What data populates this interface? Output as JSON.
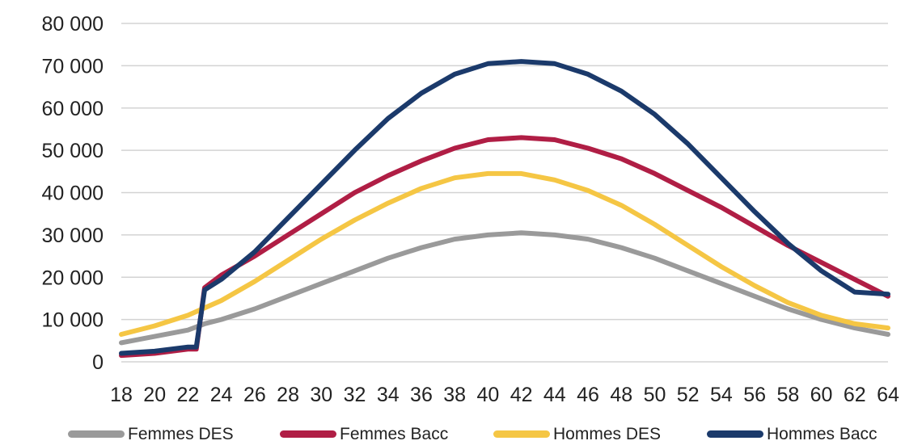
{
  "chart_data": {
    "type": "line",
    "title": "",
    "xlabel": "",
    "ylabel": "",
    "x": [
      18,
      20,
      22,
      24,
      26,
      28,
      30,
      32,
      34,
      36,
      38,
      40,
      42,
      44,
      46,
      48,
      50,
      52,
      54,
      56,
      58,
      60,
      62,
      64
    ],
    "xlim": [
      18,
      64
    ],
    "ylim": [
      0,
      80000
    ],
    "y_ticks": [
      "0",
      "10 000",
      "20 000",
      "30 000",
      "40 000",
      "50 000",
      "60 000",
      "70 000",
      "80 000"
    ],
    "x_ticks": [
      "18",
      "20",
      "22",
      "24",
      "26",
      "28",
      "30",
      "32",
      "34",
      "36",
      "38",
      "40",
      "42",
      "44",
      "46",
      "48",
      "50",
      "52",
      "54",
      "56",
      "58",
      "60",
      "62",
      "64"
    ],
    "grid": "horizontal",
    "legend_position": "bottom",
    "series": [
      {
        "name": "Femmes DES",
        "color": "#9a9a9a",
        "x": [
          18,
          20,
          22,
          23,
          24,
          26,
          28,
          30,
          32,
          34,
          36,
          38,
          40,
          42,
          44,
          46,
          48,
          50,
          52,
          54,
          56,
          58,
          60,
          62,
          64
        ],
        "values": [
          4500,
          6000,
          7500,
          9000,
          10000,
          12500,
          15500,
          18500,
          21500,
          24500,
          27000,
          29000,
          30000,
          30500,
          30000,
          29000,
          27000,
          24500,
          21500,
          18500,
          15500,
          12500,
          10000,
          8000,
          6500
        ]
      },
      {
        "name": "Femmes Bacc",
        "color": "#b01e45",
        "x": [
          18,
          20,
          22,
          22.5,
          23,
          24,
          26,
          28,
          30,
          32,
          34,
          36,
          38,
          40,
          42,
          44,
          46,
          48,
          50,
          52,
          54,
          56,
          58,
          60,
          62,
          64
        ],
        "values": [
          1500,
          2000,
          3000,
          3000,
          17500,
          20500,
          25000,
          30000,
          35000,
          40000,
          44000,
          47500,
          50500,
          52500,
          53000,
          52500,
          50500,
          48000,
          44500,
          40500,
          36500,
          32000,
          27500,
          23500,
          19500,
          15500
        ]
      },
      {
        "name": "Hommes DES",
        "color": "#f5c644",
        "x": [
          18,
          20,
          22,
          24,
          26,
          28,
          30,
          32,
          34,
          36,
          38,
          40,
          42,
          44,
          46,
          48,
          50,
          52,
          54,
          56,
          58,
          60,
          62,
          64
        ],
        "values": [
          6500,
          8500,
          11000,
          14500,
          19000,
          24000,
          29000,
          33500,
          37500,
          41000,
          43500,
          44500,
          44500,
          43000,
          40500,
          37000,
          32500,
          27500,
          22500,
          18000,
          14000,
          11000,
          9000,
          8000
        ]
      },
      {
        "name": "Hommes Bacc",
        "color": "#1b3a6b",
        "x": [
          18,
          20,
          22,
          22.5,
          23,
          24,
          26,
          28,
          30,
          32,
          34,
          36,
          38,
          40,
          42,
          44,
          46,
          48,
          50,
          52,
          54,
          56,
          58,
          60,
          62,
          64
        ],
        "values": [
          2000,
          2500,
          3500,
          3500,
          17000,
          19500,
          26000,
          34000,
          42000,
          50000,
          57500,
          63500,
          68000,
          70500,
          71000,
          70500,
          68000,
          64000,
          58500,
          51500,
          43500,
          35500,
          28000,
          21500,
          16500,
          16000
        ]
      }
    ]
  }
}
